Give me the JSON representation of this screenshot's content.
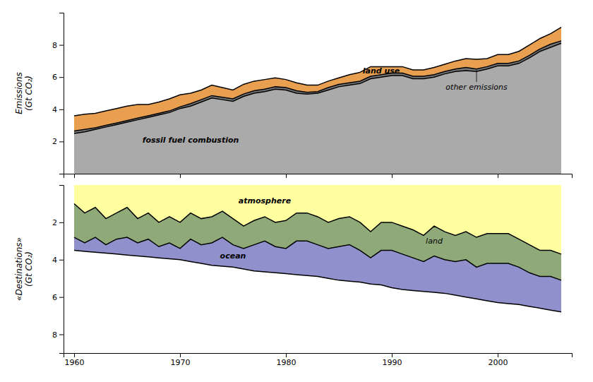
{
  "chart_data": [
    {
      "type": "area",
      "ylabel": "Emissions\n(Gt CO₂)",
      "x": [
        1960,
        1961,
        1962,
        1963,
        1964,
        1965,
        1966,
        1967,
        1968,
        1969,
        1970,
        1971,
        1972,
        1973,
        1974,
        1975,
        1976,
        1977,
        1978,
        1979,
        1980,
        1981,
        1982,
        1983,
        1984,
        1985,
        1986,
        1987,
        1988,
        1989,
        1990,
        1991,
        1992,
        1993,
        1994,
        1995,
        1996,
        1997,
        1998,
        1999,
        2000,
        2001,
        2002,
        2003,
        2004,
        2005,
        2006
      ],
      "series": [
        {
          "name": "fossil fuel combustion",
          "color": "#aaaaaa",
          "values": [
            2.5,
            2.6,
            2.75,
            2.9,
            3.05,
            3.2,
            3.35,
            3.5,
            3.65,
            3.8,
            4.05,
            4.2,
            4.45,
            4.7,
            4.6,
            4.5,
            4.8,
            5.0,
            5.1,
            5.25,
            5.2,
            5.0,
            4.95,
            5.0,
            5.2,
            5.4,
            5.5,
            5.6,
            5.9,
            6.0,
            6.1,
            6.1,
            5.9,
            5.9,
            6.0,
            6.2,
            6.35,
            6.4,
            6.35,
            6.5,
            6.7,
            6.7,
            6.85,
            7.2,
            7.6,
            7.85,
            8.1
          ]
        },
        {
          "name": "other emissions",
          "color": "#777777",
          "values": [
            2.65,
            2.75,
            2.85,
            3.0,
            3.15,
            3.3,
            3.45,
            3.6,
            3.75,
            3.9,
            4.15,
            4.35,
            4.6,
            4.85,
            4.75,
            4.65,
            4.95,
            5.15,
            5.25,
            5.4,
            5.35,
            5.15,
            5.05,
            5.1,
            5.35,
            5.55,
            5.65,
            5.75,
            6.05,
            6.15,
            6.25,
            6.25,
            6.05,
            6.05,
            6.15,
            6.35,
            6.5,
            6.6,
            6.5,
            6.65,
            6.85,
            6.85,
            7.0,
            7.35,
            7.75,
            8.05,
            8.25
          ]
        },
        {
          "name": "land use",
          "color": "#e8a050",
          "values": [
            3.6,
            3.7,
            3.75,
            3.9,
            4.05,
            4.2,
            4.3,
            4.3,
            4.45,
            4.65,
            4.9,
            5.0,
            5.2,
            5.5,
            5.35,
            5.2,
            5.55,
            5.75,
            5.85,
            5.95,
            5.85,
            5.65,
            5.5,
            5.5,
            5.75,
            5.95,
            6.15,
            6.3,
            6.65,
            6.65,
            6.65,
            6.65,
            6.45,
            6.45,
            6.6,
            6.8,
            7.0,
            7.15,
            7.1,
            7.15,
            7.4,
            7.4,
            7.6,
            8.0,
            8.4,
            8.7,
            9.1
          ]
        }
      ],
      "xlim": [
        1959,
        2007
      ],
      "ylim": [
        0,
        10
      ],
      "xticks": [
        1960,
        1970,
        1980,
        1990,
        2000
      ],
      "yticks": [
        2,
        4,
        6,
        8
      ],
      "tick_labels": "y"
    },
    {
      "type": "area",
      "ylabel": "«Destinations»\n(Gt CO₂)",
      "x": [
        1960,
        1961,
        1962,
        1963,
        1964,
        1965,
        1966,
        1967,
        1968,
        1969,
        1970,
        1971,
        1972,
        1973,
        1974,
        1975,
        1976,
        1977,
        1978,
        1979,
        1980,
        1981,
        1982,
        1983,
        1984,
        1985,
        1986,
        1987,
        1988,
        1989,
        1990,
        1991,
        1992,
        1993,
        1994,
        1995,
        1996,
        1997,
        1998,
        1999,
        2000,
        2001,
        2002,
        2003,
        2004,
        2005,
        2006
      ],
      "series": [
        {
          "name": "atmosphere",
          "color": "#ffffa0",
          "values": [
            1.0,
            1.5,
            1.2,
            1.8,
            1.5,
            1.2,
            1.8,
            1.5,
            2.0,
            1.7,
            2.0,
            1.5,
            1.8,
            1.7,
            1.4,
            1.8,
            2.2,
            1.9,
            1.7,
            2.0,
            1.9,
            1.5,
            1.5,
            1.7,
            2.0,
            1.8,
            1.7,
            2.0,
            2.5,
            2.0,
            2.0,
            2.2,
            2.4,
            2.7,
            2.2,
            2.5,
            2.7,
            2.5,
            2.8,
            2.6,
            2.6,
            2.6,
            2.9,
            3.2,
            3.5,
            3.5,
            3.7
          ]
        },
        {
          "name": "land",
          "color": "#8faa78",
          "values": [
            2.8,
            3.1,
            2.8,
            3.2,
            2.9,
            2.8,
            3.1,
            2.9,
            3.3,
            3.1,
            3.4,
            2.9,
            3.2,
            3.1,
            2.8,
            3.2,
            3.4,
            3.2,
            3.0,
            3.3,
            3.4,
            3.0,
            3.0,
            3.2,
            3.4,
            3.3,
            3.2,
            3.5,
            3.9,
            3.5,
            3.5,
            3.7,
            3.9,
            4.1,
            3.8,
            4.0,
            4.1,
            4.0,
            4.4,
            4.2,
            4.2,
            4.2,
            4.4,
            4.7,
            4.9,
            4.9,
            5.1
          ]
        },
        {
          "name": "ocean",
          "color": "#9090cc",
          "values": [
            3.5,
            3.55,
            3.6,
            3.65,
            3.7,
            3.75,
            3.8,
            3.85,
            3.9,
            3.95,
            4.0,
            4.1,
            4.2,
            4.3,
            4.35,
            4.4,
            4.5,
            4.6,
            4.65,
            4.7,
            4.75,
            4.8,
            4.85,
            4.9,
            5.0,
            5.1,
            5.15,
            5.2,
            5.3,
            5.35,
            5.5,
            5.6,
            5.65,
            5.7,
            5.75,
            5.8,
            5.9,
            6.0,
            6.1,
            6.2,
            6.3,
            6.35,
            6.4,
            6.5,
            6.6,
            6.7,
            6.8
          ]
        }
      ],
      "xlim": [
        1959,
        2007
      ],
      "ylim": [
        9,
        0
      ],
      "xticks": [
        1960,
        1970,
        1980,
        1990,
        2000
      ],
      "yticks": [
        2,
        4,
        6,
        8
      ]
    }
  ]
}
